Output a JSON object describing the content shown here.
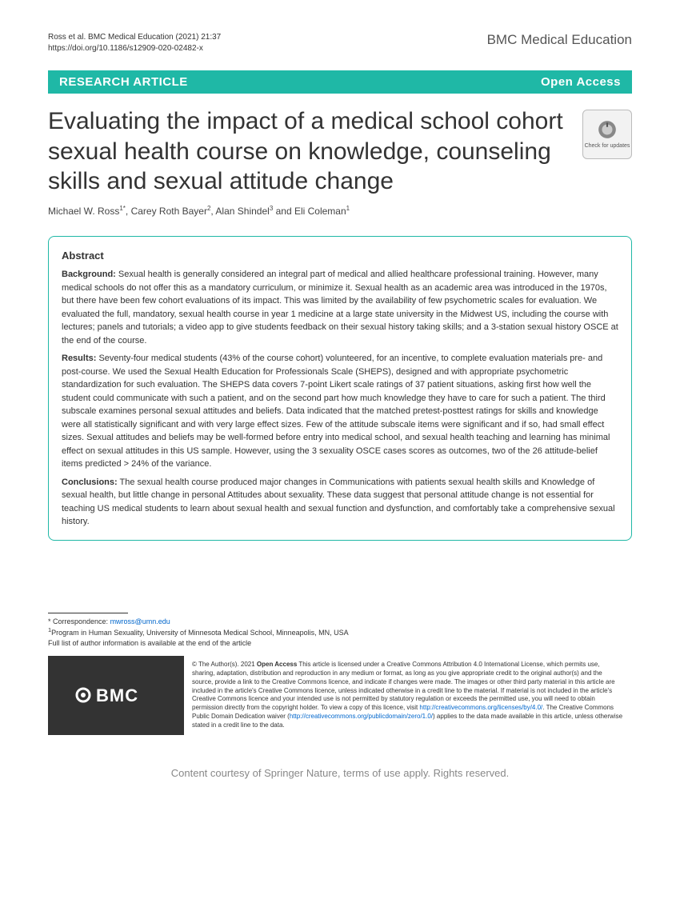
{
  "colors": {
    "accent": "#1fb8a6",
    "text": "#333333",
    "link": "#0066cc",
    "badge_bg": "#f2f2f2",
    "badge_border": "#bbbbbb",
    "license_bg": "#333333"
  },
  "header": {
    "citation_line1": "Ross et al. BMC Medical Education         (2021) 21:37",
    "citation_line2": "https://doi.org/10.1186/s12909-020-02482-x",
    "journal": "BMC Medical Education"
  },
  "banner": {
    "left": "RESEARCH ARTICLE",
    "right": "Open Access"
  },
  "title": "Evaluating the impact of a medical school cohort sexual health course on knowledge, counseling skills and sexual attitude change",
  "updates_badge": "Check for updates",
  "authors_html": "Michael W. Ross<sup>1*</sup>, Carey Roth Bayer<sup>2</sup>, Alan Shindel<sup>3</sup> and Eli Coleman<sup>1</sup>",
  "abstract": {
    "heading": "Abstract",
    "background_label": "Background:",
    "background": "Sexual health is generally considered an integral part of medical and allied healthcare professional training. However, many medical schools do not offer this as a mandatory curriculum, or minimize it. Sexual health as an academic area was introduced in the 1970s, but there have been few cohort evaluations of its impact. This was limited by the availability of few psychometric scales for evaluation. We evaluated the full, mandatory, sexual health course in year 1 medicine at a large state university in the Midwest US, including the course with lectures; panels and tutorials; a video app to give students feedback on their sexual history taking skills; and a 3-station sexual history OSCE at the end of the course.",
    "results_label": "Results:",
    "results": "Seventy-four medical students (43% of the course cohort) volunteered, for an incentive, to complete evaluation materials pre- and post-course. We used the Sexual Health Education for Professionals Scale (SHEPS), designed and with appropriate psychometric standardization for such evaluation. The SHEPS data covers 7-point Likert scale ratings of 37 patient situations, asking first how well the student could communicate with such a patient, and on the second part how much knowledge they have to care for such a patient. The third subscale examines personal sexual attitudes and beliefs. Data indicated that the matched pretest-posttest ratings for skills and knowledge were all statistically significant and with very large effect sizes. Few of the attitude subscale items were significant and if so, had small effect sizes. Sexual attitudes and beliefs may be well-formed before entry into medical school, and sexual health teaching and learning has minimal effect on sexual attitudes in this US sample. However, using the 3 sexuality OSCE cases scores as outcomes, two of the 26 attitude-belief items predicted > 24% of the variance.",
    "conclusions_label": "Conclusions:",
    "conclusions": "The sexual health course produced major changes in Communications with patients sexual health skills and Knowledge of sexual health, but little change in personal Attitudes about sexuality. These data suggest that personal attitude change is not essential for teaching US medical students to learn about sexual health and sexual function and dysfunction, and comfortably take a comprehensive sexual history."
  },
  "correspondence": {
    "label": "* Correspondence:",
    "email": "mwross@umn.edu",
    "affiliation": "Program in Human Sexuality, University of Minnesota Medical School, Minneapolis, MN, USA",
    "note": "Full list of author information is available at the end of the article"
  },
  "license": {
    "logo_text": "BMC",
    "text_prefix": "© The Author(s). 2021 ",
    "text_bold": "Open Access",
    "text_body": " This article is licensed under a Creative Commons Attribution 4.0 International License, which permits use, sharing, adaptation, distribution and reproduction in any medium or format, as long as you give appropriate credit to the original author(s) and the source, provide a link to the Creative Commons licence, and indicate if changes were made. The images or other third party material in this article are included in the article's Creative Commons licence, unless indicated otherwise in a credit line to the material. If material is not included in the article's Creative Commons licence and your intended use is not permitted by statutory regulation or exceeds the permitted use, you will need to obtain permission directly from the copyright holder. To view a copy of this licence, visit ",
    "link1": "http://creativecommons.org/licenses/by/4.0/",
    "text_body2": ". The Creative Commons Public Domain Dedication waiver (",
    "link2": "http://creativecommons.org/publicdomain/zero/1.0/",
    "text_body3": ") applies to the data made available in this article, unless otherwise stated in a credit line to the data."
  },
  "footer": "Content courtesy of Springer Nature, terms of use apply. Rights reserved."
}
